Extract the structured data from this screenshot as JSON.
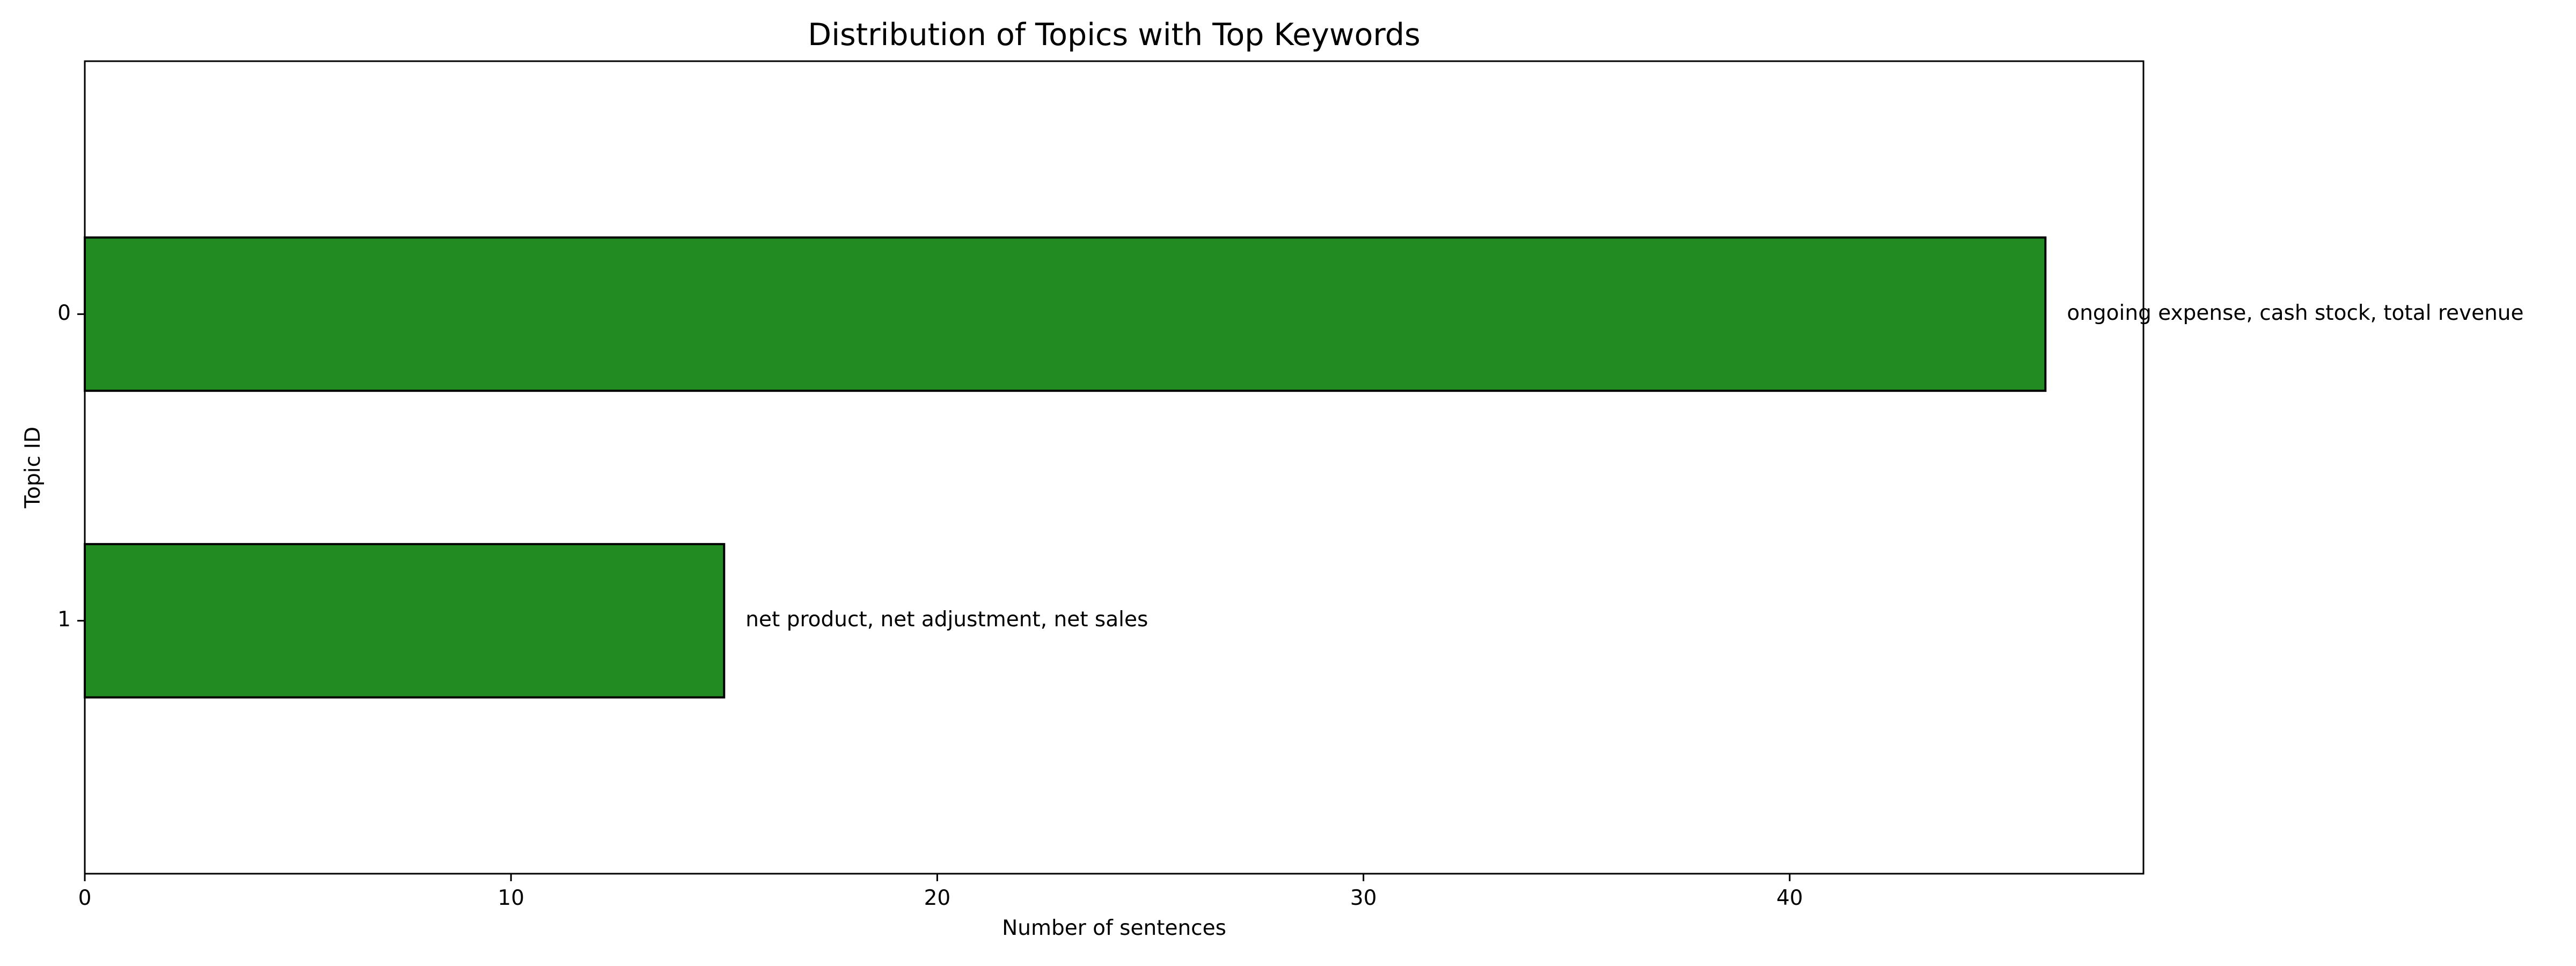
{
  "chart_data": {
    "type": "bar",
    "orientation": "horizontal",
    "title": "Distribution of Topics with Top Keywords",
    "xlabel": "Number of sentences",
    "ylabel": "Topic ID",
    "categories": [
      "0",
      "1"
    ],
    "values": [
      46,
      15
    ],
    "annotations": [
      "ongoing expense, cash stock, total revenue",
      "net product, net adjustment, net sales"
    ],
    "xlim": [
      0,
      48.3
    ],
    "xticks": [
      0,
      10,
      20,
      30,
      40
    ],
    "y_inverted": true,
    "bar_color": "#228b22",
    "bar_edge_color": "#000000",
    "grid": false,
    "legend": "none"
  }
}
